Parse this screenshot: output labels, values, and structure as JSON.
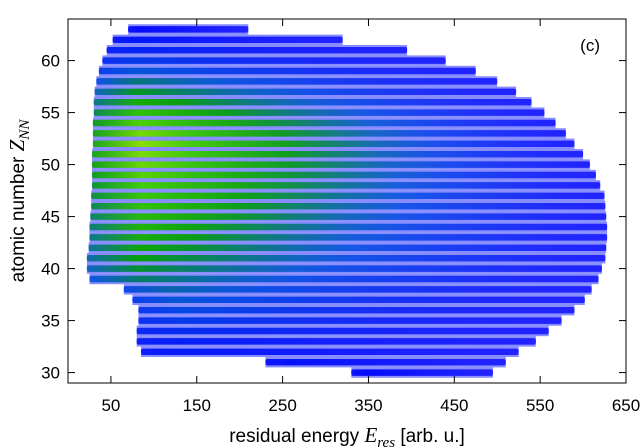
{
  "chart_data": {
    "type": "heatmap",
    "panel_label": "(c)",
    "xlabel": {
      "prefix": "residual energy ",
      "symbol": "E",
      "subscript": "res",
      "suffix": " [arb. u.]"
    },
    "ylabel": {
      "prefix": "atomic number ",
      "symbol": "Z",
      "subscript": "NN"
    },
    "xlim": [
      0,
      650
    ],
    "ylim": [
      29,
      64
    ],
    "x_ticks": [
      50,
      150,
      250,
      350,
      450,
      550,
      650
    ],
    "y_ticks": [
      30,
      35,
      40,
      45,
      50,
      55,
      60
    ],
    "grid": false,
    "colormap": [
      "#0000ff",
      "#0050e0",
      "#00a000",
      "#40d000",
      "#d8f000"
    ],
    "z_bands": [
      30,
      31,
      32,
      33,
      34,
      35,
      36,
      37,
      38,
      39,
      40,
      41,
      42,
      43,
      44,
      45,
      46,
      47,
      48,
      49,
      50,
      51,
      52,
      53,
      54,
      55,
      56,
      57,
      58,
      59,
      60,
      61,
      62,
      63
    ],
    "band_energy_range": [
      [
        330,
        495
      ],
      [
        230,
        510
      ],
      [
        85,
        525
      ],
      [
        80,
        545
      ],
      [
        80,
        560
      ],
      [
        82,
        575
      ],
      [
        82,
        590
      ],
      [
        75,
        602
      ],
      [
        65,
        610
      ],
      [
        25,
        618
      ],
      [
        22,
        622
      ],
      [
        22,
        626
      ],
      [
        24,
        627
      ],
      [
        25,
        628
      ],
      [
        25,
        628
      ],
      [
        26,
        627
      ],
      [
        27,
        626
      ],
      [
        27,
        625
      ],
      [
        28,
        620
      ],
      [
        28,
        615
      ],
      [
        28,
        608
      ],
      [
        28,
        600
      ],
      [
        29,
        590
      ],
      [
        29,
        580
      ],
      [
        29,
        568
      ],
      [
        30,
        555
      ],
      [
        30,
        540
      ],
      [
        31,
        522
      ],
      [
        33,
        500
      ],
      [
        36,
        475
      ],
      [
        40,
        440
      ],
      [
        45,
        395
      ],
      [
        52,
        320
      ],
      [
        70,
        210
      ]
    ],
    "peak_intensity": [
      0.03,
      0.05,
      0.08,
      0.1,
      0.15,
      0.2,
      0.25,
      0.3,
      0.36,
      0.45,
      0.52,
      0.58,
      0.62,
      0.66,
      0.7,
      0.74,
      0.78,
      0.82,
      0.86,
      0.9,
      0.94,
      0.97,
      1.0,
      0.96,
      0.88,
      0.78,
      0.66,
      0.54,
      0.42,
      0.3,
      0.2,
      0.12,
      0.07,
      0.03
    ]
  }
}
